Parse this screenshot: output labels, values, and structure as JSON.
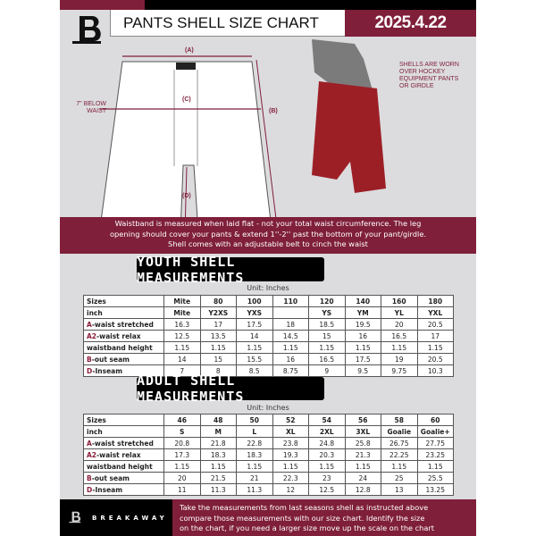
{
  "header": {
    "title": "PANTS SHELL SIZE CHART",
    "date": "2025.4.22"
  },
  "diagram": {
    "label_a": "(A)",
    "label_b": "(B)",
    "label_c": "(C)",
    "label_d": "(D)",
    "below_waist_line1": "7'' BELOW",
    "below_waist_line2": "WAIST",
    "note_lines": [
      "SHELLS ARE WORN",
      "OVER HOCKEY",
      "EQUIPMENT PANTS",
      "OR GIRDLE"
    ]
  },
  "band_lines": [
    "Waistband is measured when laid flat - not your total waist circumference. The leg",
    "opening should cover your pants & extend 1''-2'' past the bottom of your pant/girdle.",
    "Shell comes with an adjustable belt to cinch the waist"
  ],
  "youth": {
    "title": "YOUTH SHELL MEASUREMENTS",
    "unit": "Unit: Inches",
    "rows": [
      {
        "prefix": "",
        "label": "Sizes",
        "cells": [
          "Mite",
          "80",
          "100",
          "110",
          "120",
          "140",
          "160",
          "180"
        ]
      },
      {
        "prefix": "",
        "label": "inch",
        "cells": [
          "Mite",
          "Y2XS",
          "YXS",
          "",
          "YS",
          "YM",
          "YL",
          "YXL"
        ]
      },
      {
        "prefix": "A",
        "label": "-waist stretched",
        "cells": [
          "16.3",
          "17",
          "17.5",
          "18",
          "18.5",
          "19.5",
          "20",
          "20.5"
        ]
      },
      {
        "prefix": "A2",
        "label": "-waist relax",
        "cells": [
          "12.5",
          "13.5",
          "14",
          "14.5",
          "15",
          "16",
          "16.5",
          "17"
        ]
      },
      {
        "prefix": "",
        "label": "waistband height",
        "cells": [
          "1.15",
          "1.15",
          "1.15",
          "1.15",
          "1.15",
          "1.15",
          "1.15",
          "1.15"
        ]
      },
      {
        "prefix": "B",
        "label": "-out seam",
        "cells": [
          "14",
          "15",
          "15.5",
          "16",
          "16.5",
          "17.5",
          "19",
          "20.5"
        ]
      },
      {
        "prefix": "D",
        "label": "-Inseam",
        "cells": [
          "7",
          "8",
          "8.5",
          "8.75",
          "9",
          "9.5",
          "9.75",
          "10.3"
        ]
      }
    ]
  },
  "adult": {
    "title": "ADULT SHELL MEASUREMENTS",
    "unit": "Unit: Inches",
    "rows": [
      {
        "prefix": "",
        "label": "Sizes",
        "cells": [
          "46",
          "48",
          "50",
          "52",
          "54",
          "56",
          "58",
          "60"
        ]
      },
      {
        "prefix": "",
        "label": "inch",
        "cells": [
          "S",
          "M",
          "L",
          "XL",
          "2XL",
          "3XL",
          "Goalie",
          "Goalie+"
        ]
      },
      {
        "prefix": "A",
        "label": "-waist stretched",
        "cells": [
          "20.8",
          "21.8",
          "22.8",
          "23.8",
          "24.8",
          "25.8",
          "26.75",
          "27.75"
        ]
      },
      {
        "prefix": "A2",
        "label": "-waist relax",
        "cells": [
          "17.3",
          "18.3",
          "18.3",
          "19.3",
          "20.3",
          "21.3",
          "22.25",
          "23.25"
        ]
      },
      {
        "prefix": "",
        "label": "waistband height",
        "cells": [
          "1.15",
          "1.15",
          "1.15",
          "1.15",
          "1.15",
          "1.15",
          "1.15",
          "1.15"
        ]
      },
      {
        "prefix": "B",
        "label": "-out seam",
        "cells": [
          "20",
          "21.5",
          "21",
          "22.3",
          "23",
          "24",
          "25",
          "25.5"
        ]
      },
      {
        "prefix": "D",
        "label": "-Inseam",
        "cells": [
          "11",
          "11.3",
          "11.3",
          "12",
          "12.5",
          "12.8",
          "13",
          "13.25"
        ]
      }
    ]
  },
  "footer": {
    "brand": "BREAKAWAY",
    "lines": [
      "Take the measurements from last seasons shell as instructed above",
      "compare those measurements  with our size chart. Identify the size",
      "on the chart, if you need a larger size move up the scale on the chart"
    ]
  },
  "colors": {
    "maroon": "#7f1f3a",
    "black": "#000000",
    "background": "#dcdcde"
  }
}
